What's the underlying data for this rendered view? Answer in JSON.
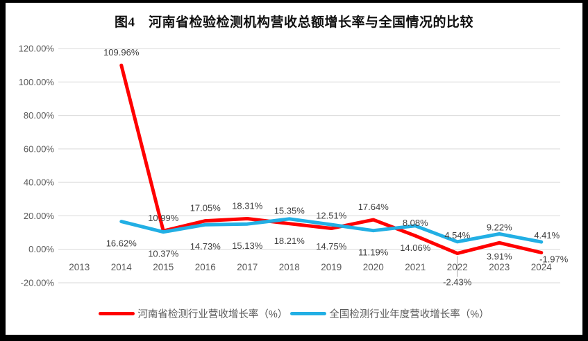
{
  "title": "图4　河南省检验检测机构营收总额增长率与全国情况的比较",
  "frame": {
    "border_color": "#000000",
    "background": "#FFFFFF"
  },
  "chart_data": {
    "type": "line",
    "title": "图4　河南省检验检测机构营收总额增长率与全国情况的比较",
    "x": [
      "2013",
      "2014",
      "2015",
      "2016",
      "2017",
      "2018",
      "2019",
      "2020",
      "2021",
      "2022",
      "2023",
      "2024"
    ],
    "series": [
      {
        "name": "河南省检测行业营收增长率（%）",
        "color": "#FF0000",
        "values": [
          null,
          109.96,
          10.99,
          17.05,
          18.31,
          15.35,
          12.51,
          17.64,
          8.08,
          -2.43,
          3.91,
          -1.97
        ],
        "label_pos": [
          null,
          "above",
          "above",
          "above",
          "above",
          "above",
          "above",
          "above",
          "above",
          "below_leader",
          "below",
          "below"
        ],
        "label_offsets": {
          "above": -14,
          "below": 24,
          "below_leader": 46
        },
        "label_dx": [
          0,
          0,
          0,
          0,
          0,
          0,
          0,
          0,
          0,
          0,
          0,
          18
        ],
        "label_dy": [
          0,
          0,
          0,
          0,
          0,
          0,
          0,
          0,
          0,
          0,
          0,
          -10
        ]
      },
      {
        "name": "全国检测行业年度营收增长率（%）",
        "color": "#22AFE4",
        "values": [
          null,
          16.62,
          10.37,
          14.73,
          15.13,
          18.21,
          14.75,
          11.19,
          14.06,
          4.54,
          9.22,
          4.41
        ],
        "label_pos": [
          null,
          "below",
          "below",
          "below",
          "below",
          "below",
          "below",
          "below",
          "below",
          "above",
          "above",
          "above"
        ],
        "label_offsets": {
          "above": -5,
          "below": 36
        },
        "label_dx": [
          0,
          0,
          0,
          0,
          0,
          0,
          0,
          0,
          0,
          0,
          0,
          8
        ],
        "label_dy": [
          0,
          0,
          0,
          0,
          0,
          0,
          0,
          0,
          0,
          0,
          0,
          0
        ]
      }
    ],
    "ylim": [
      -20,
      120
    ],
    "ytick_step": 20,
    "ytick_labels": [
      "120.00%",
      "100.00%",
      "80.00%",
      "60.00%",
      "40.00%",
      "20.00%",
      "0.00%",
      "-20.00%"
    ],
    "grid": "horizontal",
    "legend_position": "bottom",
    "line_width": 5,
    "grid_color": "#D9D9D9",
    "axis_text_color": "#595959",
    "data_label_color": "#404040",
    "leader_color": "#A6A6A6"
  }
}
